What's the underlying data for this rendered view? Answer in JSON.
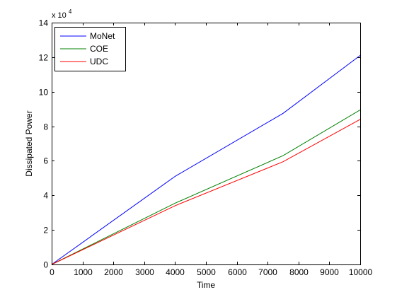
{
  "figure": {
    "background": "#ffffff",
    "axes_color": "#000000"
  },
  "chart_data": {
    "type": "line",
    "title": "",
    "xlabel": "Time",
    "ylabel": "Dissipated Power",
    "xlim": [
      0,
      10000
    ],
    "ylim": [
      0,
      140000
    ],
    "xticks": [
      0,
      1000,
      2000,
      3000,
      4000,
      5000,
      6000,
      7000,
      8000,
      9000,
      10000
    ],
    "xtick_labels": [
      "0",
      "1000",
      "2000",
      "3000",
      "4000",
      "5000",
      "6000",
      "7000",
      "8000",
      "9000",
      "10000"
    ],
    "yticks": [
      0,
      20000,
      40000,
      60000,
      80000,
      100000,
      120000,
      140000
    ],
    "ytick_labels": [
      "0",
      "2",
      "4",
      "6",
      "8",
      "10",
      "12",
      "14"
    ],
    "y_multiplier_base": "x 10",
    "y_multiplier_exponent": "4",
    "grid": false,
    "legend_position": "top-left",
    "series": [
      {
        "name": "MoNet",
        "color": "#0000ff",
        "x": [
          0,
          4000,
          7500,
          10000
        ],
        "y": [
          0,
          51000,
          87500,
          121000
        ]
      },
      {
        "name": "COE",
        "color": "#008000",
        "x": [
          0,
          4000,
          7500,
          10000
        ],
        "y": [
          0,
          35500,
          63000,
          89500
        ]
      },
      {
        "name": "UDC",
        "color": "#ff0000",
        "x": [
          0,
          4000,
          7500,
          10000
        ],
        "y": [
          0,
          34000,
          59500,
          84000
        ]
      }
    ]
  }
}
